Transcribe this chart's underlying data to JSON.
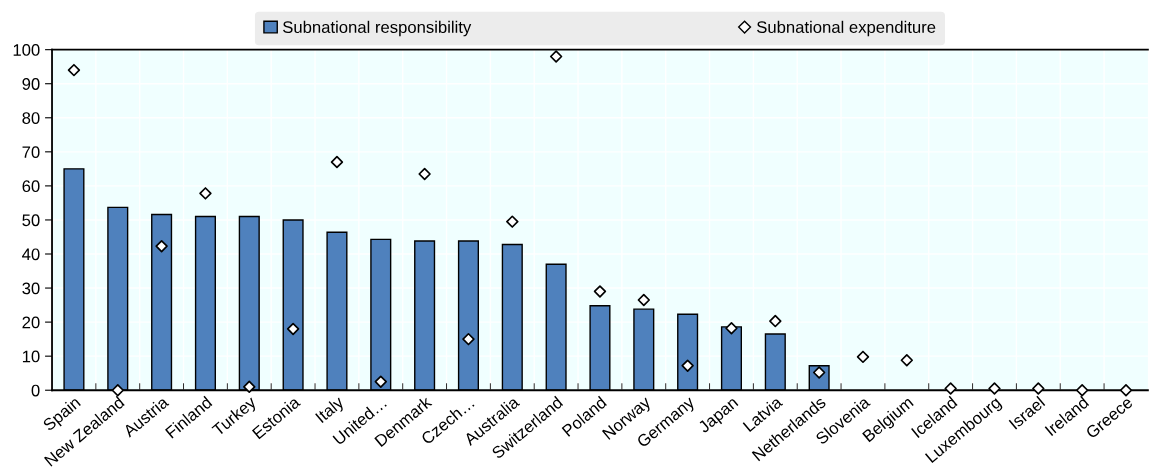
{
  "chart_data": {
    "type": "bar",
    "categories": [
      "Spain",
      "New Zealand",
      "Austria",
      "Finland",
      "Turkey",
      "Estonia",
      "Italy",
      "United…",
      "Denmark",
      "Czech…",
      "Australia",
      "Switzerland",
      "Poland",
      "Norway",
      "Germany",
      "Japan",
      "Latvia",
      "Netherlands",
      "Slovenia",
      "Belgium",
      "Iceland",
      "Luxembourg",
      "Israel",
      "Ireland",
      "Greece"
    ],
    "series": [
      {
        "name": "Subnational responsibility",
        "color": "#4f81bd",
        "values": [
          65,
          53.7,
          51.6,
          51,
          51,
          50,
          46.4,
          44.3,
          43.8,
          43.8,
          42.8,
          37,
          24.8,
          23.8,
          22.3,
          18.6,
          16.5,
          7.2,
          0,
          0,
          0,
          0,
          0,
          0,
          0
        ]
      },
      {
        "name": "Subnational expenditure",
        "type": "scatter",
        "color": "#ffffff",
        "marker": "diamond",
        "values": [
          94,
          0,
          42.3,
          57.8,
          1,
          18,
          67,
          2.5,
          63.5,
          15,
          49.5,
          98,
          29,
          26.5,
          7.2,
          18.2,
          20.3,
          5.2,
          9.8,
          8.8,
          0.5,
          0.5,
          0.5,
          0,
          0
        ]
      }
    ],
    "ylim": [
      0,
      100
    ],
    "yticks": [
      0,
      10,
      20,
      30,
      40,
      50,
      60,
      70,
      80,
      90,
      100
    ],
    "grid": true,
    "legend": "top"
  }
}
